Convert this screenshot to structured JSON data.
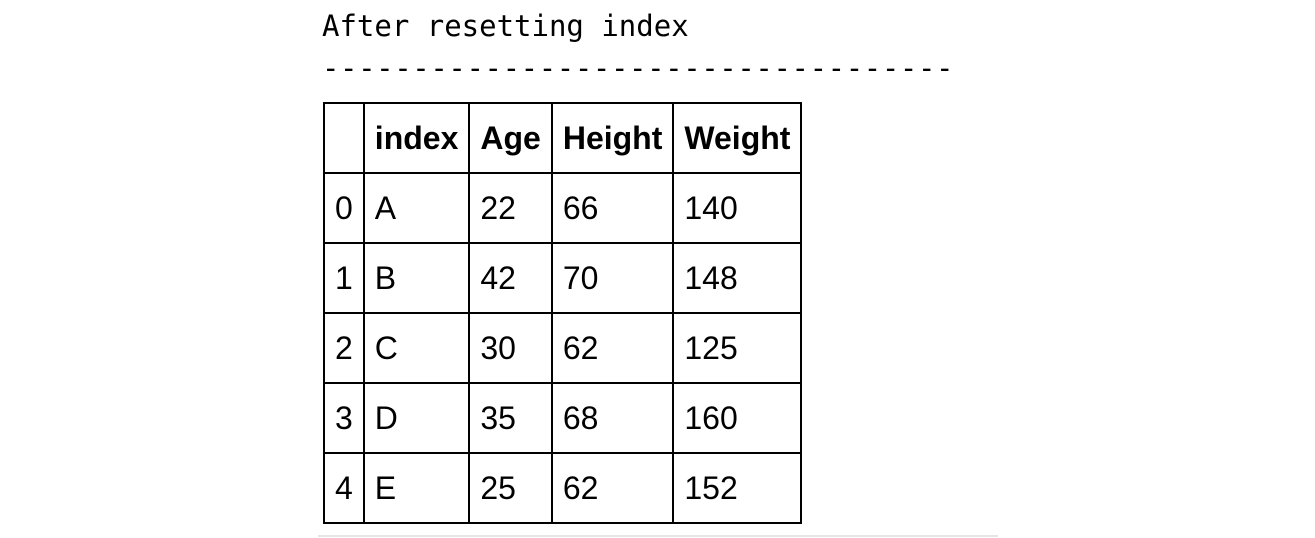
{
  "output": {
    "heading": "After resetting index",
    "separator": "-----------------------------------"
  },
  "table": {
    "columns": [
      "",
      "index",
      "Age",
      "Height",
      "Weight"
    ],
    "rows": [
      [
        "0",
        "A",
        "22",
        "66",
        "140"
      ],
      [
        "1",
        "B",
        "42",
        "70",
        "148"
      ],
      [
        "2",
        "C",
        "30",
        "62",
        "125"
      ],
      [
        "3",
        "D",
        "35",
        "68",
        "160"
      ],
      [
        "4",
        "E",
        "25",
        "62",
        "152"
      ]
    ]
  }
}
